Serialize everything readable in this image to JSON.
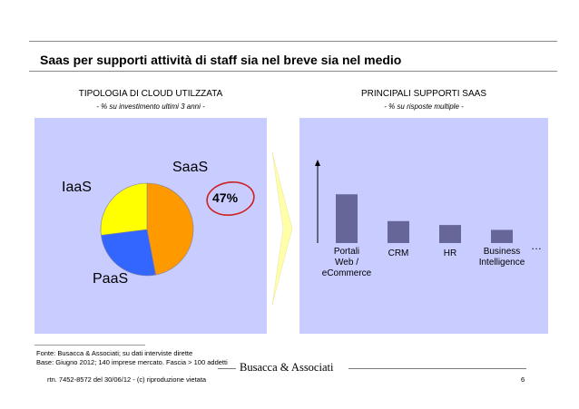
{
  "slide": {
    "title": "Saas per supporti attività di staff sia nel breve sia nel medio",
    "page_number": "6"
  },
  "left": {
    "heading": "TIPOLOGIA DI CLOUD UTILZZATA",
    "subheading": "- % su investimento ultimi 3 anni -",
    "highlight_value": "47%",
    "highlight_color": "#cc2222"
  },
  "right": {
    "heading": "PRINCIPALI SUPPORTI SAAS",
    "subheading": "- % su risposte multiple -",
    "ellipsis": "…"
  },
  "chart_data": [
    {
      "type": "pie",
      "title": "TIPOLOGIA DI CLOUD UTILZZATA",
      "labels": [
        "SaaS",
        "PaaS",
        "IaaS"
      ],
      "values": [
        47,
        26,
        27
      ],
      "colors": [
        "#ff9900",
        "#3366ff",
        "#ffff00"
      ],
      "annotations": [
        "47%"
      ]
    },
    {
      "type": "bar",
      "title": "PRINCIPALI SUPPORTI SAAS",
      "categories": [
        "Portali\nWeb /\neCommerce",
        "CRM",
        "HR",
        "Business\nIntelligence"
      ],
      "values": [
        100,
        45,
        37,
        27
      ],
      "color": "#666699",
      "ylim": [
        0,
        160
      ],
      "xlabel": "",
      "ylabel": ""
    }
  ],
  "footer": {
    "source": "Fonte: Busacca & Associati; su dati interviste dirette",
    "base": "Base: Giugno 2012; 140 imprese mercato. Fascia > 100 addetti",
    "brand": "Busacca & Associati",
    "legal": "rtn. 7452-8572 del 30/06/12 - (c) riproduzione vietata"
  }
}
